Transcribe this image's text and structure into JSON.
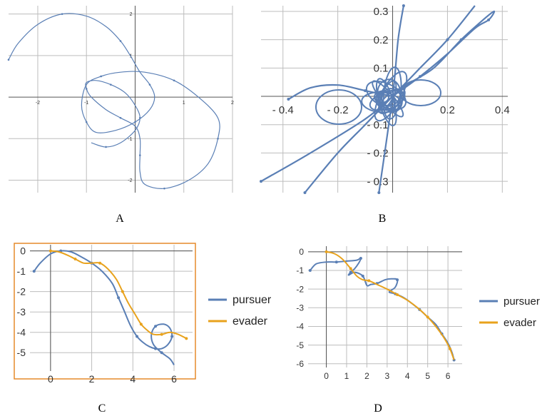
{
  "colors": {
    "pursuer": "#5a7fb5",
    "evader": "#e8a21c",
    "grid": "#bdbdbd",
    "axis": "#555555",
    "frame": "#e58a2a"
  },
  "panels": {
    "A": {
      "label": "A",
      "x_ticks": [
        "-2",
        "-1",
        "1",
        "2"
      ],
      "y_ticks": [
        "2",
        "1",
        "-1",
        "-2"
      ]
    },
    "B": {
      "label": "B",
      "x_ticks": [
        "- 0.4",
        "- 0.2",
        "0.2",
        "0.4"
      ],
      "y_ticks": [
        "0.3",
        "0.2",
        "0.1",
        "- 0.1",
        "- 0.2",
        "- 0.3"
      ]
    },
    "C": {
      "label": "C",
      "x_ticks": [
        "0",
        "2",
        "4",
        "6"
      ],
      "y_ticks": [
        "0",
        "-1",
        "-2",
        "-3",
        "-4",
        "-5"
      ],
      "legend": [
        "pursuer",
        "evader"
      ]
    },
    "D": {
      "label": "D",
      "x_ticks": [
        "0",
        "1",
        "2",
        "3",
        "4",
        "5",
        "6"
      ],
      "y_ticks": [
        "0",
        "-1",
        "-2",
        "-3",
        "-4",
        "-5",
        "-6"
      ],
      "legend": [
        "pursuer",
        "evader"
      ]
    }
  },
  "chart_data": [
    {
      "type": "line",
      "panel": "A",
      "xlim": [
        -2.6,
        2.0
      ],
      "ylim": [
        -2.3,
        2.2
      ],
      "series": [
        {
          "x": [
            -2.6,
            -2.4,
            -2.0,
            -1.5,
            -1.0,
            -0.6,
            -0.3,
            -0.1,
            0.1,
            0.3,
            0.4,
            0.3,
            0.0,
            -0.4,
            -0.8,
            -1.0,
            -1.1,
            -1.0,
            -0.7,
            -0.3,
            0.2,
            0.8,
            1.3,
            1.7,
            1.7,
            1.5,
            1.1,
            0.6,
            0.2,
            0.1,
            0.1,
            0.1,
            0.0,
            -0.3,
            -0.6,
            -0.9,
            -1.0,
            -1.0,
            -0.8,
            -0.5,
            -0.2,
            0.0,
            0.1,
            0.0,
            -0.3,
            -0.6,
            -0.9
          ],
          "y": [
            0.9,
            1.3,
            1.75,
            2.0,
            1.95,
            1.7,
            1.35,
            1.0,
            0.6,
            0.3,
            0.0,
            -0.3,
            -0.6,
            -0.8,
            -0.85,
            -0.6,
            -0.2,
            0.3,
            0.5,
            0.6,
            0.6,
            0.4,
            0.0,
            -0.5,
            -1.0,
            -1.6,
            -2.0,
            -2.2,
            -2.1,
            -1.8,
            -1.4,
            -1.0,
            -0.7,
            -0.5,
            -0.3,
            0.0,
            0.2,
            0.35,
            0.4,
            0.3,
            0.1,
            -0.2,
            -0.5,
            -0.8,
            -1.1,
            -1.2,
            -1.1
          ]
        }
      ]
    },
    {
      "type": "line",
      "panel": "B",
      "xlim": [
        -0.48,
        0.42
      ],
      "ylim": [
        -0.34,
        0.32
      ],
      "series": [
        {
          "x": [
            -0.48,
            -0.3,
            -0.1,
            0.0,
            0.05,
            0.15,
            0.25,
            0.33,
            0.37,
            0.35,
            0.3,
            0.2,
            0.1,
            0.0
          ],
          "y": [
            -0.3,
            -0.2,
            -0.08,
            0.0,
            0.04,
            0.1,
            0.2,
            0.27,
            0.3,
            0.27,
            0.24,
            0.15,
            0.07,
            0.0
          ]
        },
        {
          "x": [
            -0.32,
            -0.2,
            -0.1,
            0.0,
            0.05,
            0.1,
            0.2,
            0.3
          ],
          "y": [
            -0.34,
            -0.2,
            -0.1,
            0.0,
            0.05,
            0.1,
            0.2,
            0.32
          ]
        },
        {
          "x": [
            -0.05,
            0.0,
            0.02,
            0.04
          ],
          "y": [
            -0.34,
            0.0,
            0.2,
            0.32
          ]
        },
        {
          "x": [
            -0.38,
            -0.3,
            -0.2,
            -0.1,
            0.0
          ],
          "y": [
            -0.01,
            0.03,
            0.04,
            0.02,
            0.0
          ]
        }
      ]
    },
    {
      "type": "line",
      "panel": "C",
      "xlabel": "",
      "ylabel": "",
      "xlim": [
        -1.0,
        6.9
      ],
      "ylim": [
        -5.9,
        0.3
      ],
      "legend": "right",
      "series": [
        {
          "name": "pursuer",
          "x": [
            -0.8,
            -0.5,
            0.0,
            0.5,
            1.0,
            1.5,
            2.0,
            2.5,
            3.0,
            3.3,
            3.6,
            3.9,
            4.2,
            4.5,
            4.8,
            5.1,
            5.4,
            5.7,
            5.9,
            5.8,
            5.5,
            5.1,
            4.9,
            5.0,
            5.4,
            5.8,
            6.0
          ],
          "y": [
            -1.0,
            -0.6,
            -0.15,
            0.0,
            -0.05,
            -0.3,
            -0.6,
            -1.0,
            -1.6,
            -2.3,
            -3.0,
            -3.7,
            -4.2,
            -4.5,
            -4.7,
            -4.8,
            -4.8,
            -4.6,
            -4.2,
            -3.8,
            -3.6,
            -3.7,
            -4.1,
            -4.6,
            -5.0,
            -5.3,
            -5.6
          ]
        },
        {
          "name": "evader",
          "x": [
            0.0,
            0.4,
            0.8,
            1.2,
            1.6,
            2.0,
            2.4,
            2.8,
            3.2,
            3.5,
            3.8,
            4.1,
            4.4,
            4.7,
            5.0,
            5.4,
            5.8,
            6.2,
            6.6
          ],
          "y": [
            0.0,
            -0.05,
            -0.2,
            -0.4,
            -0.6,
            -0.6,
            -0.6,
            -0.9,
            -1.4,
            -2.0,
            -2.6,
            -3.1,
            -3.6,
            -3.9,
            -4.1,
            -4.1,
            -4.0,
            -4.1,
            -4.3
          ]
        }
      ]
    },
    {
      "type": "line",
      "panel": "D",
      "xlabel": "",
      "ylabel": "",
      "xlim": [
        -0.9,
        6.7
      ],
      "ylim": [
        -6.2,
        0.3
      ],
      "legend": "right",
      "series": [
        {
          "name": "pursuer",
          "x": [
            -0.8,
            -0.5,
            0.0,
            0.5,
            1.0,
            1.5,
            1.7,
            1.6,
            1.4,
            1.2,
            1.1,
            1.4,
            1.8,
            2.0,
            2.2,
            2.5,
            2.9,
            3.2,
            3.5,
            3.4,
            3.1,
            3.4,
            3.8,
            4.2,
            4.6,
            5.0,
            5.4,
            5.7,
            6.0,
            6.2,
            6.3
          ],
          "y": [
            -1.0,
            -0.65,
            -0.55,
            -0.55,
            -0.5,
            -0.45,
            -0.35,
            -0.6,
            -0.9,
            -1.1,
            -1.25,
            -1.1,
            -1.3,
            -1.8,
            -1.75,
            -1.7,
            -1.5,
            -1.45,
            -1.5,
            -1.9,
            -2.15,
            -2.25,
            -2.45,
            -2.75,
            -3.1,
            -3.5,
            -3.9,
            -4.4,
            -4.9,
            -5.4,
            -5.8
          ]
        },
        {
          "name": "evader",
          "x": [
            0.0,
            0.4,
            0.8,
            1.2,
            1.5,
            1.8,
            2.1,
            2.5,
            3.0,
            3.5,
            4.0,
            4.5,
            5.0,
            5.4,
            5.8,
            6.1,
            6.3
          ],
          "y": [
            0.0,
            -0.1,
            -0.4,
            -0.9,
            -1.3,
            -1.5,
            -1.55,
            -1.75,
            -2.0,
            -2.3,
            -2.6,
            -3.0,
            -3.5,
            -4.0,
            -4.6,
            -5.2,
            -5.8
          ]
        }
      ]
    }
  ]
}
